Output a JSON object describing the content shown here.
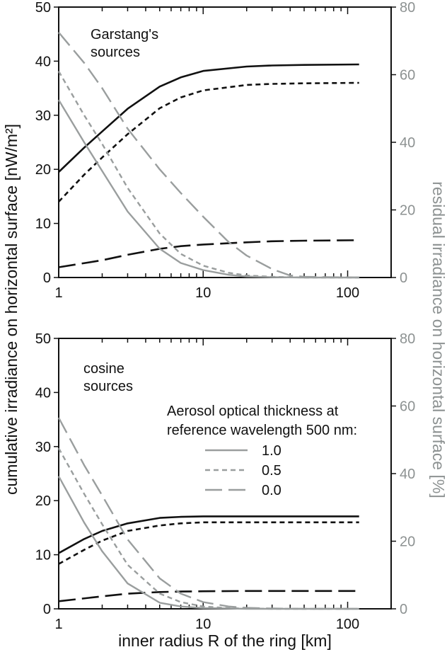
{
  "ylabel_left": "cumulative irradiance on horizontal surface [nW/m²]",
  "ylabel_right": "residual irradiance on horizontal surface [%]",
  "xlabel": "inner radius R of the ring [km]",
  "colors": {
    "black": "#111111",
    "gray": "#9a9e9e",
    "right_axis": "#8d9292"
  },
  "legend": {
    "title_line1": "Aerosol optical thickness at",
    "title_line2": "reference wavelength 500 nm:",
    "entries": [
      {
        "label": "1.0",
        "style": "solid"
      },
      {
        "label": "0.5",
        "style": "short-dash"
      },
      {
        "label": "0.0",
        "style": "long-dash"
      }
    ]
  },
  "chart_data": [
    {
      "type": "line",
      "annotation_line1": "Garstang's",
      "annotation_line2": "sources",
      "x_scale": "log",
      "xlim": [
        1,
        200
      ],
      "x_ticks": [
        "1",
        "10",
        "100"
      ],
      "ylim_left": [
        0,
        50
      ],
      "y_ticks_left": [
        "0",
        "10",
        "20",
        "30",
        "40",
        "50"
      ],
      "ylim_right": [
        0,
        80
      ],
      "y_ticks_right": [
        "0",
        "20",
        "40",
        "60",
        "80"
      ],
      "series": [
        {
          "axis": "left",
          "color": "black",
          "style": "solid",
          "aod": "1.0",
          "x": [
            1,
            1.5,
            2,
            3,
            5,
            7,
            10,
            20,
            30,
            50,
            120
          ],
          "y": [
            19.5,
            24,
            27,
            31.2,
            35.3,
            37,
            38.2,
            39,
            39.2,
            39.3,
            39.4
          ]
        },
        {
          "axis": "left",
          "color": "black",
          "style": "short-dash",
          "aod": "0.5",
          "x": [
            1,
            1.5,
            2,
            3,
            5,
            7,
            10,
            20,
            30,
            50,
            120
          ],
          "y": [
            14,
            19,
            22.2,
            26.5,
            31.3,
            33.3,
            34.6,
            35.6,
            35.8,
            35.9,
            36
          ]
        },
        {
          "axis": "left",
          "color": "black",
          "style": "long-dash",
          "aod": "0.0",
          "x": [
            1,
            2,
            3,
            5,
            7,
            10,
            20,
            30,
            50,
            120
          ],
          "y": [
            1.9,
            3.2,
            4.2,
            5.3,
            5.8,
            6.1,
            6.5,
            6.7,
            6.8,
            6.9
          ]
        },
        {
          "axis": "right",
          "color": "gray",
          "style": "solid",
          "aod": "1.0",
          "x": [
            1,
            1.5,
            2,
            3,
            5,
            7,
            10,
            15,
            20,
            30,
            50,
            120
          ],
          "y": [
            52.5,
            40,
            31.5,
            19.5,
            8.5,
            4.3,
            2.2,
            0.8,
            0.3,
            0.1,
            0,
            0
          ]
        },
        {
          "axis": "right",
          "color": "gray",
          "style": "short-dash",
          "aod": "0.5",
          "x": [
            1,
            1.5,
            2,
            3,
            5,
            7,
            10,
            15,
            20,
            30,
            50,
            120
          ],
          "y": [
            61,
            48,
            39.5,
            26.5,
            13,
            7,
            3.5,
            1.4,
            0.6,
            0.2,
            0,
            0
          ]
        },
        {
          "axis": "right",
          "color": "gray",
          "style": "long-dash",
          "aod": "0.0",
          "x": [
            1,
            1.5,
            2,
            3,
            5,
            7,
            10,
            15,
            20,
            30,
            40,
            50,
            120
          ],
          "y": [
            72.5,
            63.5,
            56,
            44,
            32,
            25,
            18,
            10.5,
            6.5,
            2.5,
            0.6,
            0.2,
            0
          ]
        }
      ]
    },
    {
      "type": "line",
      "annotation_line1": "cosine",
      "annotation_line2": "sources",
      "x_scale": "log",
      "xlim": [
        1,
        200
      ],
      "x_ticks": [
        "1",
        "10",
        "100"
      ],
      "ylim_left": [
        0,
        50
      ],
      "y_ticks_left": [
        "0",
        "10",
        "20",
        "30",
        "40",
        "50"
      ],
      "ylim_right": [
        0,
        80
      ],
      "y_ticks_right": [
        "0",
        "20",
        "40",
        "60",
        "80"
      ],
      "series": [
        {
          "axis": "left",
          "color": "black",
          "style": "solid",
          "aod": "1.0",
          "x": [
            1,
            1.5,
            2,
            3,
            5,
            7,
            10,
            20,
            50,
            120
          ],
          "y": [
            10.3,
            12.9,
            14.4,
            15.8,
            16.8,
            17,
            17.1,
            17.1,
            17.1,
            17.1
          ]
        },
        {
          "axis": "left",
          "color": "black",
          "style": "short-dash",
          "aod": "0.5",
          "x": [
            1,
            1.5,
            2,
            3,
            5,
            7,
            10,
            20,
            50,
            120
          ],
          "y": [
            8.3,
            10.9,
            12.6,
            14.4,
            15.4,
            15.8,
            16,
            16,
            16,
            16
          ]
        },
        {
          "axis": "left",
          "color": "black",
          "style": "long-dash",
          "aod": "0.0",
          "x": [
            1,
            2,
            3,
            5,
            7,
            10,
            20,
            50,
            120
          ],
          "y": [
            1.4,
            2.3,
            2.8,
            3.1,
            3.2,
            3.25,
            3.3,
            3.3,
            3.3
          ]
        },
        {
          "axis": "right",
          "color": "gray",
          "style": "solid",
          "aod": "1.0",
          "x": [
            1,
            1.5,
            2,
            3,
            5,
            7,
            10,
            15,
            20,
            30,
            50,
            120
          ],
          "y": [
            39.2,
            25.5,
            17,
            7.5,
            1.8,
            0.7,
            0.2,
            0.1,
            0,
            0,
            0,
            0
          ]
        },
        {
          "axis": "right",
          "color": "gray",
          "style": "short-dash",
          "aod": "0.5",
          "x": [
            1,
            1.5,
            2,
            3,
            5,
            7,
            10,
            15,
            20,
            30,
            50,
            120
          ],
          "y": [
            47.5,
            34,
            25,
            13,
            4.5,
            2,
            0.7,
            0.2,
            0.1,
            0,
            0,
            0
          ]
        },
        {
          "axis": "right",
          "color": "gray",
          "style": "long-dash",
          "aod": "0.0",
          "x": [
            1,
            1.5,
            2,
            3,
            5,
            7,
            10,
            15,
            20,
            30,
            50,
            120
          ],
          "y": [
            56.5,
            42.5,
            33.5,
            20.5,
            9,
            4.5,
            2,
            0.7,
            0.3,
            0.1,
            0,
            0
          ]
        }
      ]
    }
  ]
}
